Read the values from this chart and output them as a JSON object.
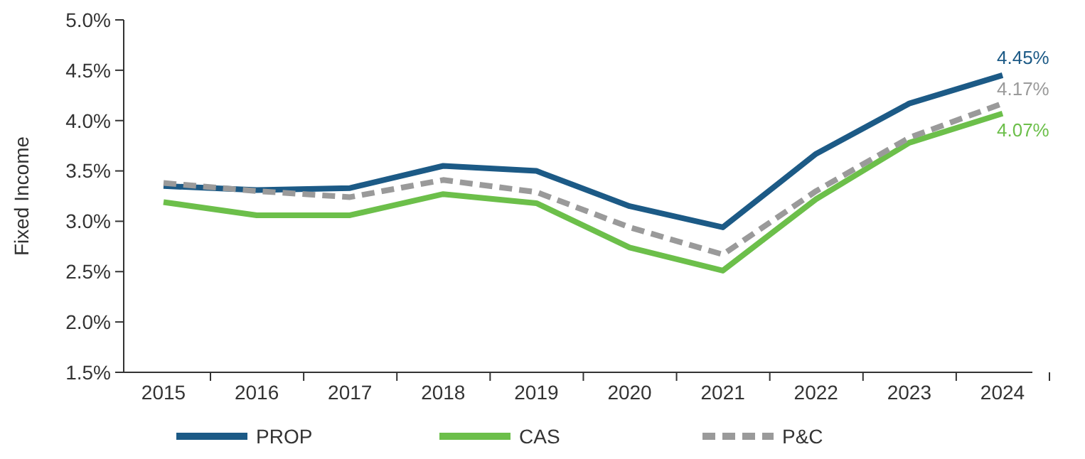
{
  "chart_data": {
    "type": "line",
    "ylabel": "Fixed Income",
    "categories": [
      "2015",
      "2016",
      "2017",
      "2018",
      "2019",
      "2020",
      "2021",
      "2022",
      "2023",
      "2024"
    ],
    "ylim": [
      1.5,
      5.0
    ],
    "yticks": [
      {
        "value": 1.5,
        "label": "1.5%"
      },
      {
        "value": 2.0,
        "label": "2.0%"
      },
      {
        "value": 2.5,
        "label": "2.5%"
      },
      {
        "value": 3.0,
        "label": "3.0%"
      },
      {
        "value": 3.5,
        "label": "3.5%"
      },
      {
        "value": 4.0,
        "label": "4.0%"
      },
      {
        "value": 4.5,
        "label": "4.5%"
      },
      {
        "value": 5.0,
        "label": "5.0%"
      }
    ],
    "grid": false,
    "legend": "bottom",
    "marker": "none",
    "series": [
      {
        "name": "PROP",
        "color": "#1c5a86",
        "line_style": "solid",
        "values": [
          3.35,
          3.31,
          3.33,
          3.55,
          3.5,
          3.15,
          2.94,
          3.67,
          4.17,
          4.45
        ],
        "value_labels": [
          null,
          null,
          null,
          null,
          null,
          null,
          null,
          null,
          null,
          "4.45%"
        ]
      },
      {
        "name": "CAS",
        "color": "#6cbf4a",
        "line_style": "solid",
        "values": [
          3.19,
          3.06,
          3.06,
          3.27,
          3.18,
          2.74,
          2.51,
          3.22,
          3.78,
          4.07
        ],
        "value_labels": [
          null,
          null,
          null,
          null,
          null,
          null,
          null,
          null,
          null,
          "4.07%"
        ]
      },
      {
        "name": "P&C",
        "color": "#9a9a9a",
        "line_style": "dashed",
        "values": [
          3.38,
          3.3,
          3.24,
          3.41,
          3.29,
          2.94,
          2.67,
          3.3,
          3.83,
          4.17
        ],
        "value_labels": [
          null,
          null,
          null,
          null,
          null,
          null,
          null,
          null,
          null,
          "4.17%"
        ]
      }
    ]
  }
}
